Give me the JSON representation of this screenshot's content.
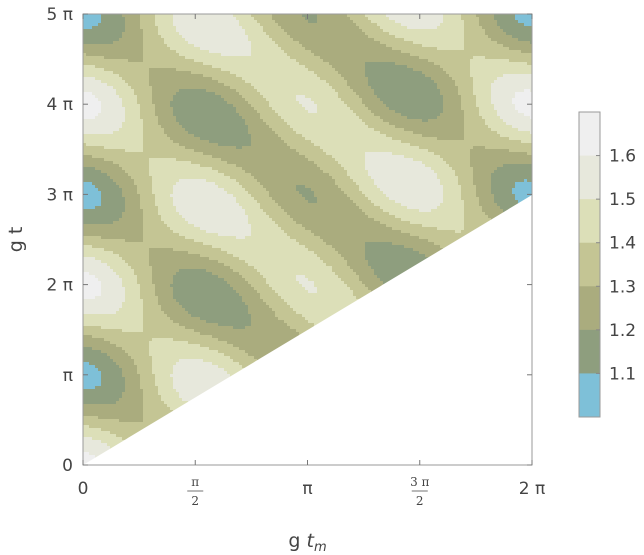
{
  "chart_data": {
    "type": "heatmap",
    "subtype": "contour",
    "title": "",
    "xlabel": {
      "main": "g",
      "var": "t",
      "sub": "m"
    },
    "ylabel": "g t",
    "xlim": [
      0,
      6.2832
    ],
    "ylim": [
      0,
      15.708
    ],
    "domain": "g t >= 1.5 * g t_m",
    "x_ticks": [
      {
        "value": 0,
        "label": "0"
      },
      {
        "value": 1.5708,
        "num": "π",
        "den": "2"
      },
      {
        "value": 3.1416,
        "label": "π"
      },
      {
        "value": 4.7124,
        "num": "3 π",
        "den": "2"
      },
      {
        "value": 6.2832,
        "label": "2 π"
      }
    ],
    "y_ticks": [
      {
        "value": 0,
        "label": "0"
      },
      {
        "value": 3.1416,
        "label": "π"
      },
      {
        "value": 6.2832,
        "label": "2 π"
      },
      {
        "value": 9.4248,
        "label": "3 π"
      },
      {
        "value": 12.5664,
        "label": "4 π"
      },
      {
        "value": 15.708,
        "label": "5 π"
      }
    ],
    "contour_levels": [
      1.1,
      1.2,
      1.3,
      1.4,
      1.5,
      1.6
    ],
    "value_range": [
      1.0,
      1.7
    ],
    "colors": [
      "#7ec0d8",
      "#8e9e7e",
      "#aaac7e",
      "#c4c594",
      "#dcdfb8",
      "#e7e8dc",
      "#efefef"
    ],
    "legend": {
      "position": "right",
      "labels": [
        "1.1",
        "1.2",
        "1.3",
        "1.4",
        "1.5",
        "1.6"
      ]
    },
    "grid": false
  }
}
